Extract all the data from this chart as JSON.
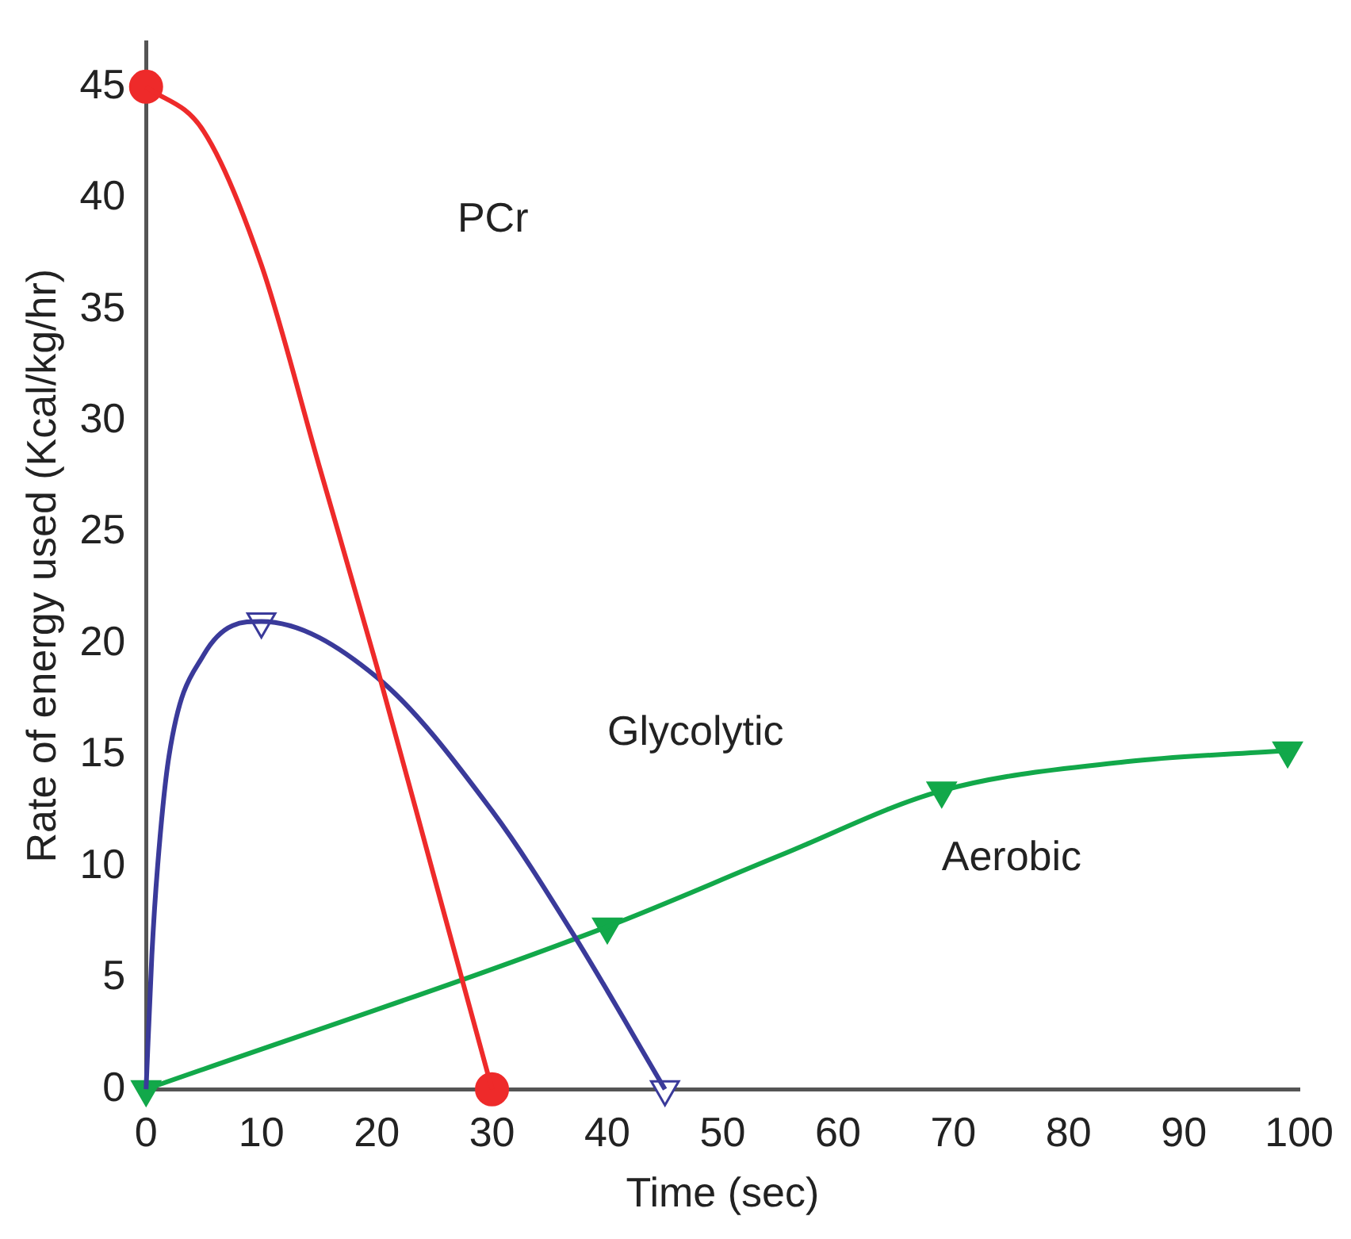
{
  "chart_data": {
    "type": "line",
    "xlabel": "Time (sec)",
    "ylabel": "Rate of energy used (Kcal/kg/hr)",
    "xlim": [
      0,
      100
    ],
    "ylim": [
      0,
      47
    ],
    "xticks": [
      0,
      10,
      20,
      30,
      40,
      50,
      60,
      70,
      80,
      90,
      100
    ],
    "yticks": [
      0,
      5,
      10,
      15,
      20,
      25,
      30,
      35,
      40,
      45
    ],
    "grid": false,
    "legend": false,
    "series": [
      {
        "color": "#ee2a2a",
        "marker": "none",
        "x": [
          0,
          5,
          10,
          15,
          20,
          25,
          30
        ],
        "values": [
          45,
          43,
          37,
          28,
          19,
          9.5,
          0
        ]
      },
      {
        "type": "scatter",
        "color": "#ee2a2a",
        "marker": "circle",
        "x": [
          0,
          30
        ],
        "values": [
          45,
          0
        ]
      },
      {
        "color": "#3a3a9a",
        "marker": "none",
        "x": [
          0,
          0.5,
          1,
          2,
          5,
          10,
          20,
          30,
          37,
          45
        ],
        "values": [
          0,
          6,
          10,
          15,
          19.5,
          21,
          18.5,
          12.5,
          7,
          0
        ]
      },
      {
        "type": "scatter",
        "color": "#3a3a9a",
        "marker": "triangle",
        "x": [
          10,
          45
        ],
        "values": [
          21,
          0
        ]
      },
      {
        "color": "#12a84a",
        "marker": "none",
        "x": [
          0,
          40,
          55,
          69,
          85,
          99
        ],
        "values": [
          0,
          7.3,
          10.5,
          13.4,
          14.7,
          15.2
        ]
      },
      {
        "type": "scatter",
        "color": "#12a84a",
        "marker": "triangle",
        "x": [
          0,
          40,
          69,
          99
        ],
        "values": [
          0,
          7.3,
          13.4,
          15.2
        ]
      }
    ],
    "annotations": [
      "PCr",
      "Glycolytic",
      "Aerobic"
    ]
  }
}
